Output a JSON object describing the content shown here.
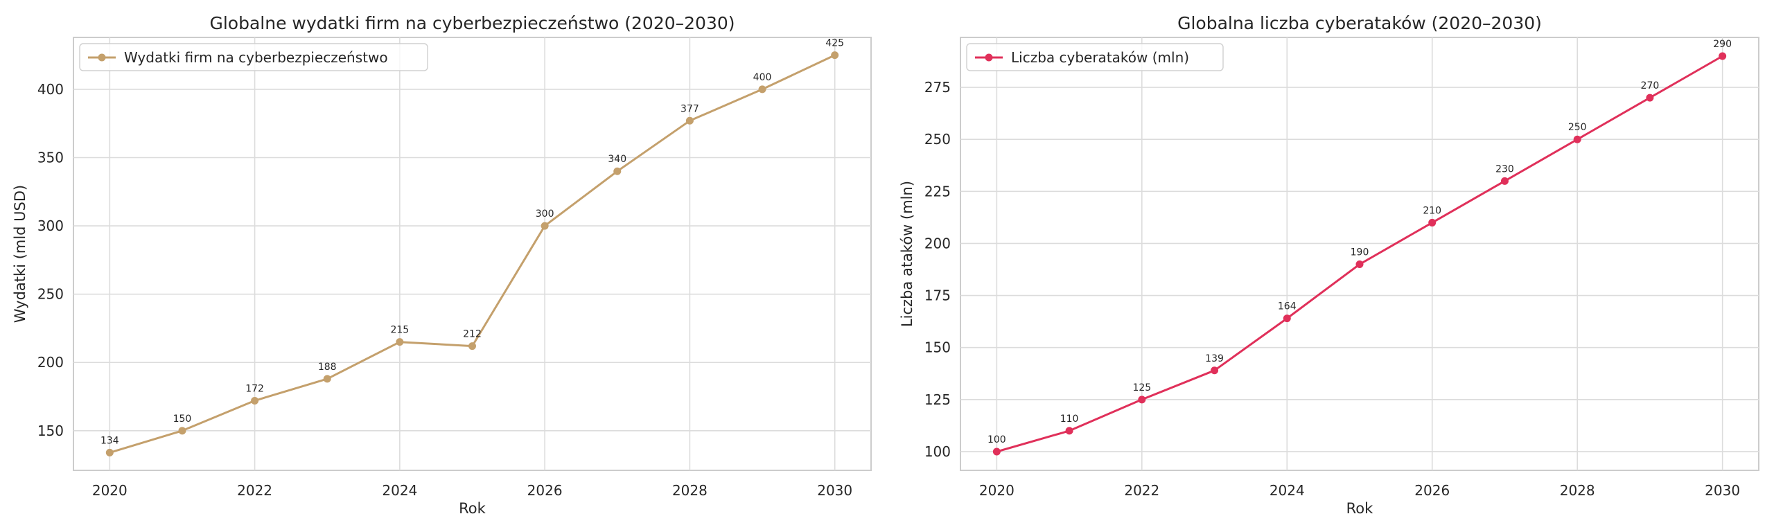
{
  "chart_data": [
    {
      "type": "line",
      "title": "Globalne wydatki firm na cyberbezpieczeństwo (2020–2030)",
      "xlabel": "Rok",
      "ylabel": "Wydatki (mld USD)",
      "x": [
        2020,
        2021,
        2022,
        2023,
        2024,
        2025,
        2026,
        2027,
        2028,
        2029,
        2030
      ],
      "x_ticks": [
        "2020",
        "2022",
        "2024",
        "2026",
        "2028",
        "2030"
      ],
      "y_ticks": [
        "150",
        "200",
        "250",
        "300",
        "350",
        "400"
      ],
      "ylim": [
        121,
        438
      ],
      "xlim": [
        2019.5,
        2030.5
      ],
      "grid": true,
      "legend_position": "top-left",
      "series": [
        {
          "name": "Wydatki firm na cyberbezpieczeństwo",
          "color": "#c4a06c",
          "values": [
            134,
            150,
            172,
            188,
            215,
            212,
            300,
            340,
            377,
            400,
            425
          ],
          "labels": [
            "134",
            "150",
            "172",
            "188",
            "215",
            "212",
            "300",
            "340",
            "377",
            "400",
            "425"
          ]
        }
      ]
    },
    {
      "type": "line",
      "title": "Globalna liczba cyberataków (2020–2030)",
      "xlabel": "Rok",
      "ylabel": "Liczba ataków (mln)",
      "x": [
        2020,
        2021,
        2022,
        2023,
        2024,
        2025,
        2026,
        2027,
        2028,
        2029,
        2030
      ],
      "x_ticks": [
        "2020",
        "2022",
        "2024",
        "2026",
        "2028",
        "2030"
      ],
      "y_ticks": [
        "100",
        "125",
        "150",
        "175",
        "200",
        "225",
        "250",
        "275"
      ],
      "ylim": [
        91,
        299
      ],
      "xlim": [
        2019.5,
        2030.5
      ],
      "grid": true,
      "legend_position": "top-left",
      "series": [
        {
          "name": "Liczba cyberataków (mln)",
          "color": "#e0305a",
          "values": [
            100,
            110,
            125,
            139,
            164,
            190,
            210,
            230,
            250,
            270,
            290
          ],
          "labels": [
            "100",
            "110",
            "125",
            "139",
            "164",
            "190",
            "210",
            "230",
            "250",
            "270",
            "290"
          ]
        }
      ]
    }
  ]
}
